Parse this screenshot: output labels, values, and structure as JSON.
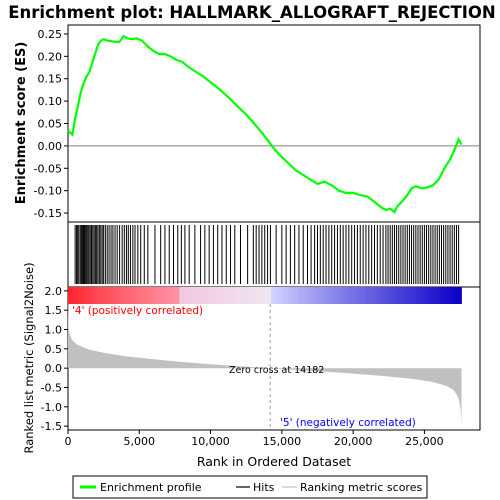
{
  "chart_data": {
    "type": "line",
    "title": "Enrichment plot: HALLMARK_ALLOGRAFT_REJECTION",
    "top_panel": {
      "ylabel": "Enrichment score (ES)",
      "ylim": [
        -0.17,
        0.27
      ],
      "yticks": [
        "0.25",
        "0.20",
        "0.15",
        "0.10",
        "0.05",
        "0.00",
        "-0.05",
        "-0.10",
        "-0.15"
      ],
      "ytick_values": [
        0.25,
        0.2,
        0.15,
        0.1,
        0.05,
        0.0,
        -0.05,
        -0.1,
        -0.15
      ],
      "series": [
        {
          "name": "Enrichment profile",
          "color": "#00ff00",
          "x": [
            0,
            300,
            500,
            700,
            900,
            1100,
            1300,
            1500,
            1700,
            1900,
            2100,
            2300,
            2500,
            2800,
            3200,
            3600,
            3900,
            4200,
            4500,
            4800,
            5200,
            5600,
            6000,
            6400,
            6800,
            7200,
            7600,
            8000,
            8500,
            9000,
            9500,
            10000,
            10500,
            11000,
            11500,
            12000,
            12500,
            13000,
            13500,
            14000,
            14500,
            15000,
            15500,
            16000,
            16500,
            17000,
            17500,
            18000,
            18500,
            19000,
            19500,
            20000,
            20500,
            21000,
            21500,
            22000,
            22300,
            22600,
            22900,
            23100,
            23500,
            23800,
            24100,
            24400,
            24800,
            25200,
            25600,
            26000,
            26400,
            26800,
            27100,
            27400,
            27600
          ],
          "y": [
            0.035,
            0.025,
            0.06,
            0.09,
            0.12,
            0.14,
            0.155,
            0.165,
            0.185,
            0.205,
            0.225,
            0.235,
            0.238,
            0.235,
            0.233,
            0.232,
            0.245,
            0.24,
            0.238,
            0.24,
            0.235,
            0.222,
            0.212,
            0.205,
            0.205,
            0.2,
            0.192,
            0.188,
            0.175,
            0.165,
            0.155,
            0.142,
            0.13,
            0.116,
            0.101,
            0.085,
            0.07,
            0.052,
            0.033,
            0.013,
            -0.008,
            -0.025,
            -0.04,
            -0.055,
            -0.065,
            -0.075,
            -0.085,
            -0.08,
            -0.088,
            -0.1,
            -0.105,
            -0.105,
            -0.11,
            -0.113,
            -0.125,
            -0.138,
            -0.143,
            -0.14,
            -0.148,
            -0.135,
            -0.122,
            -0.11,
            -0.095,
            -0.09,
            -0.095,
            -0.093,
            -0.088,
            -0.075,
            -0.05,
            -0.03,
            -0.01,
            0.015,
            0.003
          ]
        }
      ]
    },
    "hits_panel": {
      "series_name": "Hits",
      "positions": [
        500,
        600,
        680,
        760,
        860,
        940,
        1010,
        1090,
        1160,
        1240,
        1310,
        1390,
        1470,
        1560,
        1650,
        1740,
        1830,
        1920,
        2010,
        2100,
        2200,
        2300,
        2400,
        2500,
        2620,
        2750,
        2880,
        3020,
        3150,
        3300,
        3450,
        3620,
        3800,
        3950,
        4100,
        4230,
        4380,
        4550,
        4700,
        4900,
        5100,
        5350,
        5600,
        6100,
        6500,
        6800,
        7100,
        7400,
        7700,
        7950,
        8200,
        8500,
        8900,
        9300,
        9600,
        9900,
        10200,
        10500,
        10800,
        11100,
        11400,
        11700,
        12100,
        12600,
        13000,
        13200,
        13400,
        13600,
        13800,
        14000,
        14200,
        14600,
        15000,
        15300,
        15600,
        15900,
        16200,
        16500,
        16800,
        17050,
        17300,
        17500,
        17700,
        17900,
        18100,
        18300,
        18500,
        18700,
        18900,
        19100,
        19300,
        19500,
        19700,
        19900,
        20100,
        20300,
        20500,
        20700,
        20900,
        21100,
        21300,
        21500,
        21700,
        21900,
        22100,
        22300,
        22450,
        22600,
        22750,
        22900,
        23050,
        23200,
        23350,
        23500,
        23650,
        23800,
        23950,
        24100,
        24250,
        24400,
        24550,
        24700,
        24850,
        25000,
        25150,
        25300,
        25450,
        25600,
        25750,
        25900,
        26050,
        26200,
        26350,
        26500,
        26650,
        26800,
        26950,
        27100,
        27250,
        27400
      ]
    },
    "ranked_panel": {
      "ylabel": "Ranked list metric (Signal2Noise)",
      "ylim": [
        -1.6,
        2.1
      ],
      "yticks": [
        "2.0",
        "1.5",
        "1.0",
        "0.5",
        "0.0",
        "-0.5",
        "-1.0",
        "-1.5"
      ],
      "ytick_values": [
        2.0,
        1.5,
        1.0,
        0.5,
        0.0,
        -0.5,
        -1.0,
        -1.5
      ],
      "x": [
        0,
        50,
        150,
        300,
        600,
        1000,
        1500,
        2500,
        4000,
        6000,
        8000,
        10000,
        12000,
        14182,
        16000,
        18000,
        20000,
        22000,
        24000,
        25500,
        26500,
        27000,
        27300,
        27450,
        27550,
        27600
      ],
      "y": [
        1.9,
        1.0,
        0.85,
        0.72,
        0.62,
        0.55,
        0.48,
        0.4,
        0.31,
        0.23,
        0.16,
        0.1,
        0.05,
        0.0,
        -0.05,
        -0.09,
        -0.14,
        -0.2,
        -0.27,
        -0.35,
        -0.45,
        -0.55,
        -0.7,
        -0.85,
        -1.1,
        -1.5
      ],
      "zero_cross_label": "Zero cross at 14182",
      "zero_cross": 14182,
      "pos_label": "'4' (positively correlated)",
      "neg_label": "'5' (negatively correlated)",
      "pos_label_color": "#ff0000",
      "neg_label_color": "#0000ff"
    },
    "xlabel": "Rank in Ordered Dataset",
    "xlim": [
      0,
      28900
    ],
    "xticks": [
      "0",
      "5,000",
      "10,000",
      "15,000",
      "20,000",
      "25,000"
    ],
    "xtick_values": [
      0,
      5000,
      10000,
      15000,
      20000,
      25000
    ],
    "n_genes": 27600,
    "legend": [
      {
        "label": "Enrichment profile",
        "color": "#00ff00"
      },
      {
        "label": "Hits",
        "color": "#000000"
      },
      {
        "label": "Ranking metric scores",
        "color": "#c0c0c0"
      }
    ],
    "legend_position": "bottom"
  }
}
